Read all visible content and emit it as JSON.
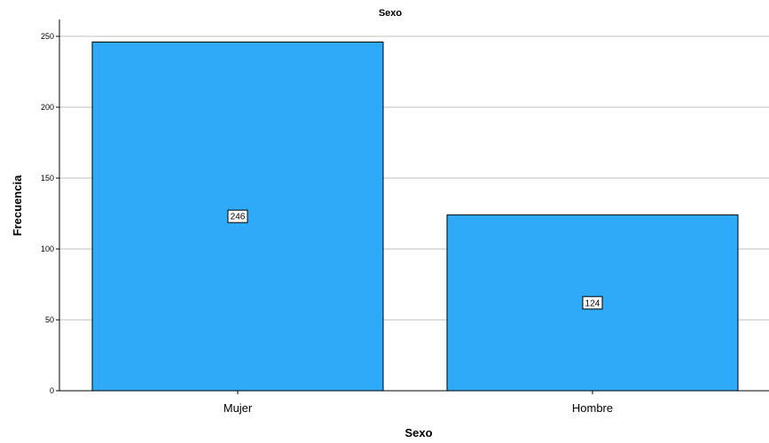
{
  "chart_data": {
    "type": "bar",
    "title": "Sexo",
    "xlabel": "Sexo",
    "ylabel": "Frecuencia",
    "categories": [
      "Mujer",
      "Hombre"
    ],
    "values": [
      246,
      124
    ],
    "data_labels": [
      "246",
      "124"
    ],
    "ylim": [
      0,
      250
    ],
    "yticks": [
      0,
      50,
      100,
      150,
      200,
      250
    ],
    "grid": true,
    "bar_color": "#2EAAF9",
    "bar_edge_color": "#000000",
    "grid_color": "#BFBFBF"
  }
}
